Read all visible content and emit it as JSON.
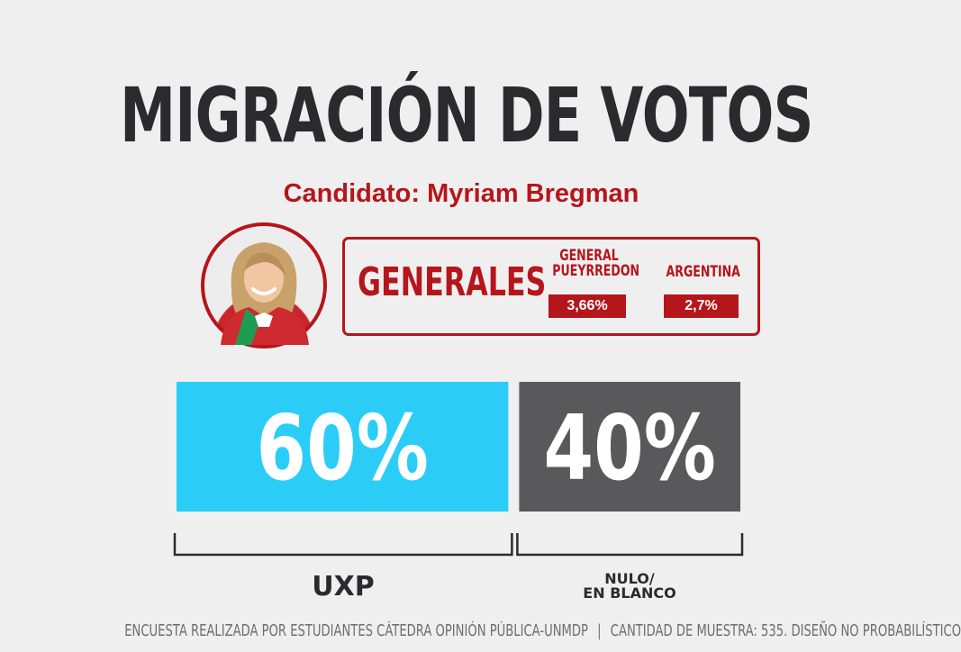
{
  "title": "MIGRACIÓN DE VOTOS",
  "subtitle": "Candidato: Myriam Bregman",
  "generales": {
    "label": "GENERALES",
    "regions": [
      {
        "name": "GENERAL\nPUEYRREDON",
        "value": "3,66%"
      },
      {
        "name": "ARGENTINA",
        "value": "2,7%"
      }
    ]
  },
  "chart_data": {
    "type": "bar",
    "orientation": "horizontal-stacked",
    "categories": [
      "UXP",
      "NULO/\nEN BLANCO"
    ],
    "values": [
      60,
      40
    ],
    "value_labels": [
      "60%",
      "40%"
    ],
    "colors": [
      "#2bcdf7",
      "#59585b"
    ],
    "xlabel": "",
    "ylabel": ""
  },
  "footer": {
    "left": "ENCUESTA REALIZADA POR ESTUDIANTES CÁTEDRA OPINIÓN PÚBLICA-UNMDP",
    "separator": "|",
    "right": "CANTIDAD DE MUESTRA: 535. DISEÑO NO PROBABILÍSTICO"
  },
  "colors": {
    "background": "#efefef",
    "accent": "#b5161b",
    "title": "#2b2a2c"
  }
}
